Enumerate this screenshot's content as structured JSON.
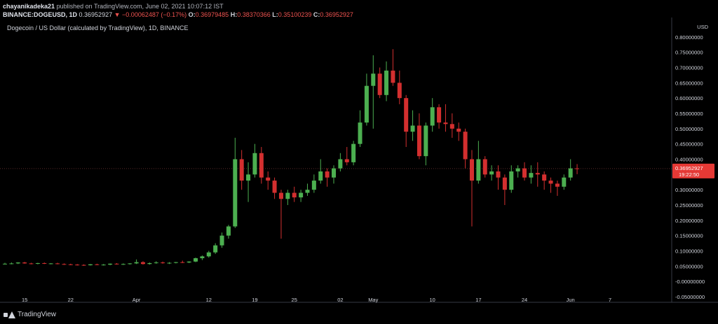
{
  "header": {
    "user": "chayanikadeka21",
    "published_text": "published on TradingView.com, June 02, 2021 10:07:12 IST",
    "symbol": "BINANCE:DOGEUSD, 1D",
    "last_price": "0.36952927",
    "change_arrow": "▼",
    "change": "−0.00062487 (−0.17%)",
    "open_label": "O:",
    "open_value": "0.36979485",
    "high_label": "H:",
    "high_value": "0.38370366",
    "low_label": "L:",
    "low_value": "0.35100239",
    "close_label": "C:",
    "close_value": "0.36952927"
  },
  "pair_title": "Dogecoin / US Dollar (calculated by TradingView), 1D, BINANCE",
  "brand": "TradingView",
  "colors": {
    "up": "#26a69a",
    "up_fill": "#4caf50",
    "down": "#d32f2f",
    "background": "#000000",
    "axis_text": "#d1d4dc",
    "price_tag": "#e53935"
  },
  "chart_data": {
    "type": "candlestick",
    "currency": "USD",
    "ylim": [
      -0.05,
      0.85
    ],
    "y_ticks": [
      {
        "v": 0.8,
        "t": "0.80000000"
      },
      {
        "v": 0.75,
        "t": "0.75000000"
      },
      {
        "v": 0.7,
        "t": "0.70000000"
      },
      {
        "v": 0.65,
        "t": "0.65000000"
      },
      {
        "v": 0.6,
        "t": "0.60000000"
      },
      {
        "v": 0.55,
        "t": "0.55000000"
      },
      {
        "v": 0.5,
        "t": "0.50000000"
      },
      {
        "v": 0.45,
        "t": "0.45000000"
      },
      {
        "v": 0.4,
        "t": "0.40000000"
      },
      {
        "v": 0.35,
        "t": "0.35000000"
      },
      {
        "v": 0.3,
        "t": "0.30000000"
      },
      {
        "v": 0.25,
        "t": "0.25000000"
      },
      {
        "v": 0.2,
        "t": "0.20000000"
      },
      {
        "v": 0.15,
        "t": "0.15000000"
      },
      {
        "v": 0.1,
        "t": "0.10000000"
      },
      {
        "v": 0.05,
        "t": "0.05000000"
      },
      {
        "v": 0.0,
        "t": "-0.00000000"
      },
      {
        "v": -0.05,
        "t": "-0.05000000"
      }
    ],
    "x_ticks": [
      {
        "i": 3,
        "t": "15"
      },
      {
        "i": 10,
        "t": "22"
      },
      {
        "i": 20,
        "t": "Apr"
      },
      {
        "i": 31,
        "t": "12"
      },
      {
        "i": 38,
        "t": "19"
      },
      {
        "i": 44,
        "t": "25"
      },
      {
        "i": 51,
        "t": "02"
      },
      {
        "i": 56,
        "t": "May"
      },
      {
        "i": 65,
        "t": "10"
      },
      {
        "i": 72,
        "t": "17"
      },
      {
        "i": 79,
        "t": "24"
      },
      {
        "i": 86,
        "t": "Jun"
      },
      {
        "i": 92,
        "t": "7"
      }
    ],
    "last_price_label": "0.36952927",
    "countdown_label": "19:22:50",
    "last_price": 0.3695,
    "candles": [
      {
        "o": 0.058,
        "h": 0.061,
        "l": 0.055,
        "c": 0.058
      },
      {
        "o": 0.058,
        "h": 0.062,
        "l": 0.056,
        "c": 0.059
      },
      {
        "o": 0.059,
        "h": 0.063,
        "l": 0.057,
        "c": 0.062
      },
      {
        "o": 0.062,
        "h": 0.064,
        "l": 0.058,
        "c": 0.059
      },
      {
        "o": 0.059,
        "h": 0.061,
        "l": 0.056,
        "c": 0.058
      },
      {
        "o": 0.058,
        "h": 0.061,
        "l": 0.056,
        "c": 0.06
      },
      {
        "o": 0.06,
        "h": 0.062,
        "l": 0.057,
        "c": 0.058
      },
      {
        "o": 0.058,
        "h": 0.06,
        "l": 0.056,
        "c": 0.059
      },
      {
        "o": 0.059,
        "h": 0.061,
        "l": 0.056,
        "c": 0.057
      },
      {
        "o": 0.057,
        "h": 0.059,
        "l": 0.054,
        "c": 0.056
      },
      {
        "o": 0.056,
        "h": 0.058,
        "l": 0.053,
        "c": 0.055
      },
      {
        "o": 0.055,
        "h": 0.057,
        "l": 0.052,
        "c": 0.054
      },
      {
        "o": 0.054,
        "h": 0.056,
        "l": 0.051,
        "c": 0.053
      },
      {
        "o": 0.053,
        "h": 0.057,
        "l": 0.052,
        "c": 0.056
      },
      {
        "o": 0.056,
        "h": 0.058,
        "l": 0.053,
        "c": 0.054
      },
      {
        "o": 0.054,
        "h": 0.057,
        "l": 0.052,
        "c": 0.055
      },
      {
        "o": 0.055,
        "h": 0.059,
        "l": 0.053,
        "c": 0.058
      },
      {
        "o": 0.058,
        "h": 0.06,
        "l": 0.055,
        "c": 0.056
      },
      {
        "o": 0.056,
        "h": 0.059,
        "l": 0.054,
        "c": 0.057
      },
      {
        "o": 0.057,
        "h": 0.06,
        "l": 0.055,
        "c": 0.059
      },
      {
        "o": 0.059,
        "h": 0.072,
        "l": 0.057,
        "c": 0.063
      },
      {
        "o": 0.063,
        "h": 0.066,
        "l": 0.055,
        "c": 0.057
      },
      {
        "o": 0.057,
        "h": 0.062,
        "l": 0.055,
        "c": 0.06
      },
      {
        "o": 0.06,
        "h": 0.066,
        "l": 0.058,
        "c": 0.062
      },
      {
        "o": 0.062,
        "h": 0.065,
        "l": 0.058,
        "c": 0.06
      },
      {
        "o": 0.06,
        "h": 0.063,
        "l": 0.057,
        "c": 0.061
      },
      {
        "o": 0.061,
        "h": 0.064,
        "l": 0.059,
        "c": 0.063
      },
      {
        "o": 0.063,
        "h": 0.068,
        "l": 0.06,
        "c": 0.062
      },
      {
        "o": 0.062,
        "h": 0.066,
        "l": 0.06,
        "c": 0.065
      },
      {
        "o": 0.065,
        "h": 0.078,
        "l": 0.063,
        "c": 0.076
      },
      {
        "o": 0.076,
        "h": 0.085,
        "l": 0.07,
        "c": 0.082
      },
      {
        "o": 0.082,
        "h": 0.1,
        "l": 0.078,
        "c": 0.095
      },
      {
        "o": 0.095,
        "h": 0.125,
        "l": 0.09,
        "c": 0.118
      },
      {
        "o": 0.118,
        "h": 0.16,
        "l": 0.11,
        "c": 0.15
      },
      {
        "o": 0.15,
        "h": 0.185,
        "l": 0.14,
        "c": 0.18
      },
      {
        "o": 0.18,
        "h": 0.47,
        "l": 0.175,
        "c": 0.4
      },
      {
        "o": 0.4,
        "h": 0.43,
        "l": 0.3,
        "c": 0.33
      },
      {
        "o": 0.33,
        "h": 0.39,
        "l": 0.26,
        "c": 0.35
      },
      {
        "o": 0.35,
        "h": 0.45,
        "l": 0.34,
        "c": 0.42
      },
      {
        "o": 0.42,
        "h": 0.44,
        "l": 0.32,
        "c": 0.34
      },
      {
        "o": 0.34,
        "h": 0.36,
        "l": 0.3,
        "c": 0.33
      },
      {
        "o": 0.33,
        "h": 0.34,
        "l": 0.27,
        "c": 0.29
      },
      {
        "o": 0.29,
        "h": 0.3,
        "l": 0.14,
        "c": 0.27
      },
      {
        "o": 0.27,
        "h": 0.3,
        "l": 0.25,
        "c": 0.29
      },
      {
        "o": 0.29,
        "h": 0.31,
        "l": 0.26,
        "c": 0.275
      },
      {
        "o": 0.275,
        "h": 0.3,
        "l": 0.26,
        "c": 0.29
      },
      {
        "o": 0.29,
        "h": 0.32,
        "l": 0.28,
        "c": 0.3
      },
      {
        "o": 0.3,
        "h": 0.35,
        "l": 0.29,
        "c": 0.33
      },
      {
        "o": 0.33,
        "h": 0.4,
        "l": 0.32,
        "c": 0.36
      },
      {
        "o": 0.36,
        "h": 0.37,
        "l": 0.31,
        "c": 0.34
      },
      {
        "o": 0.34,
        "h": 0.38,
        "l": 0.32,
        "c": 0.37
      },
      {
        "o": 0.37,
        "h": 0.42,
        "l": 0.36,
        "c": 0.4
      },
      {
        "o": 0.4,
        "h": 0.44,
        "l": 0.38,
        "c": 0.39
      },
      {
        "o": 0.39,
        "h": 0.46,
        "l": 0.38,
        "c": 0.45
      },
      {
        "o": 0.45,
        "h": 0.56,
        "l": 0.44,
        "c": 0.52
      },
      {
        "o": 0.52,
        "h": 0.68,
        "l": 0.51,
        "c": 0.64
      },
      {
        "o": 0.64,
        "h": 0.74,
        "l": 0.5,
        "c": 0.68
      },
      {
        "o": 0.68,
        "h": 0.7,
        "l": 0.6,
        "c": 0.61
      },
      {
        "o": 0.61,
        "h": 0.72,
        "l": 0.59,
        "c": 0.69
      },
      {
        "o": 0.69,
        "h": 0.76,
        "l": 0.64,
        "c": 0.65
      },
      {
        "o": 0.65,
        "h": 0.69,
        "l": 0.58,
        "c": 0.6
      },
      {
        "o": 0.6,
        "h": 0.61,
        "l": 0.44,
        "c": 0.49
      },
      {
        "o": 0.49,
        "h": 0.56,
        "l": 0.46,
        "c": 0.51
      },
      {
        "o": 0.51,
        "h": 0.55,
        "l": 0.4,
        "c": 0.41
      },
      {
        "o": 0.41,
        "h": 0.52,
        "l": 0.38,
        "c": 0.51
      },
      {
        "o": 0.51,
        "h": 0.6,
        "l": 0.49,
        "c": 0.57
      },
      {
        "o": 0.57,
        "h": 0.58,
        "l": 0.5,
        "c": 0.52
      },
      {
        "o": 0.52,
        "h": 0.58,
        "l": 0.49,
        "c": 0.515
      },
      {
        "o": 0.515,
        "h": 0.55,
        "l": 0.47,
        "c": 0.5
      },
      {
        "o": 0.5,
        "h": 0.52,
        "l": 0.46,
        "c": 0.49
      },
      {
        "o": 0.49,
        "h": 0.5,
        "l": 0.37,
        "c": 0.4
      },
      {
        "o": 0.4,
        "h": 0.43,
        "l": 0.18,
        "c": 0.33
      },
      {
        "o": 0.33,
        "h": 0.46,
        "l": 0.32,
        "c": 0.4
      },
      {
        "o": 0.4,
        "h": 0.41,
        "l": 0.34,
        "c": 0.35
      },
      {
        "o": 0.35,
        "h": 0.38,
        "l": 0.33,
        "c": 0.36
      },
      {
        "o": 0.36,
        "h": 0.38,
        "l": 0.3,
        "c": 0.34
      },
      {
        "o": 0.34,
        "h": 0.35,
        "l": 0.25,
        "c": 0.3
      },
      {
        "o": 0.3,
        "h": 0.38,
        "l": 0.29,
        "c": 0.36
      },
      {
        "o": 0.36,
        "h": 0.38,
        "l": 0.34,
        "c": 0.37
      },
      {
        "o": 0.37,
        "h": 0.39,
        "l": 0.33,
        "c": 0.34
      },
      {
        "o": 0.34,
        "h": 0.38,
        "l": 0.32,
        "c": 0.355
      },
      {
        "o": 0.355,
        "h": 0.39,
        "l": 0.31,
        "c": 0.35
      },
      {
        "o": 0.35,
        "h": 0.36,
        "l": 0.3,
        "c": 0.33
      },
      {
        "o": 0.33,
        "h": 0.34,
        "l": 0.29,
        "c": 0.32
      },
      {
        "o": 0.32,
        "h": 0.33,
        "l": 0.28,
        "c": 0.31
      },
      {
        "o": 0.31,
        "h": 0.35,
        "l": 0.3,
        "c": 0.34
      },
      {
        "o": 0.34,
        "h": 0.4,
        "l": 0.33,
        "c": 0.37
      },
      {
        "o": 0.37,
        "h": 0.384,
        "l": 0.351,
        "c": 0.3695
      }
    ]
  }
}
